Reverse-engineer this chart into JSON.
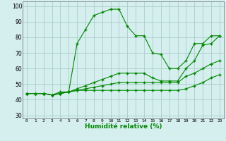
{
  "title": "",
  "xlabel": "Humidité relative (%)",
  "ylabel": "",
  "bg_color": "#d5eeee",
  "grid_color": "#aacccc",
  "line_color": "#008800",
  "marker": "+",
  "xlim": [
    -0.5,
    23.5
  ],
  "ylim": [
    28,
    103
  ],
  "xticks": [
    0,
    1,
    2,
    3,
    4,
    5,
    6,
    7,
    8,
    9,
    10,
    11,
    12,
    13,
    14,
    15,
    16,
    17,
    18,
    19,
    20,
    21,
    22,
    23
  ],
  "yticks": [
    30,
    40,
    50,
    60,
    70,
    80,
    90,
    100
  ],
  "series": [
    [
      44,
      44,
      44,
      43,
      45,
      45,
      76,
      85,
      94,
      96,
      98,
      98,
      87,
      81,
      81,
      70,
      69,
      60,
      60,
      65,
      76,
      76,
      81,
      81
    ],
    [
      44,
      44,
      44,
      43,
      44,
      45,
      47,
      49,
      51,
      53,
      55,
      57,
      57,
      57,
      57,
      54,
      52,
      52,
      52,
      60,
      65,
      75,
      76,
      81
    ],
    [
      44,
      44,
      44,
      43,
      44,
      45,
      46,
      47,
      48,
      49,
      50,
      51,
      51,
      51,
      51,
      51,
      51,
      51,
      51,
      55,
      57,
      60,
      63,
      65
    ],
    [
      44,
      44,
      44,
      43,
      44,
      45,
      46,
      46,
      46,
      46,
      46,
      46,
      46,
      46,
      46,
      46,
      46,
      46,
      46,
      47,
      49,
      51,
      54,
      56
    ]
  ]
}
